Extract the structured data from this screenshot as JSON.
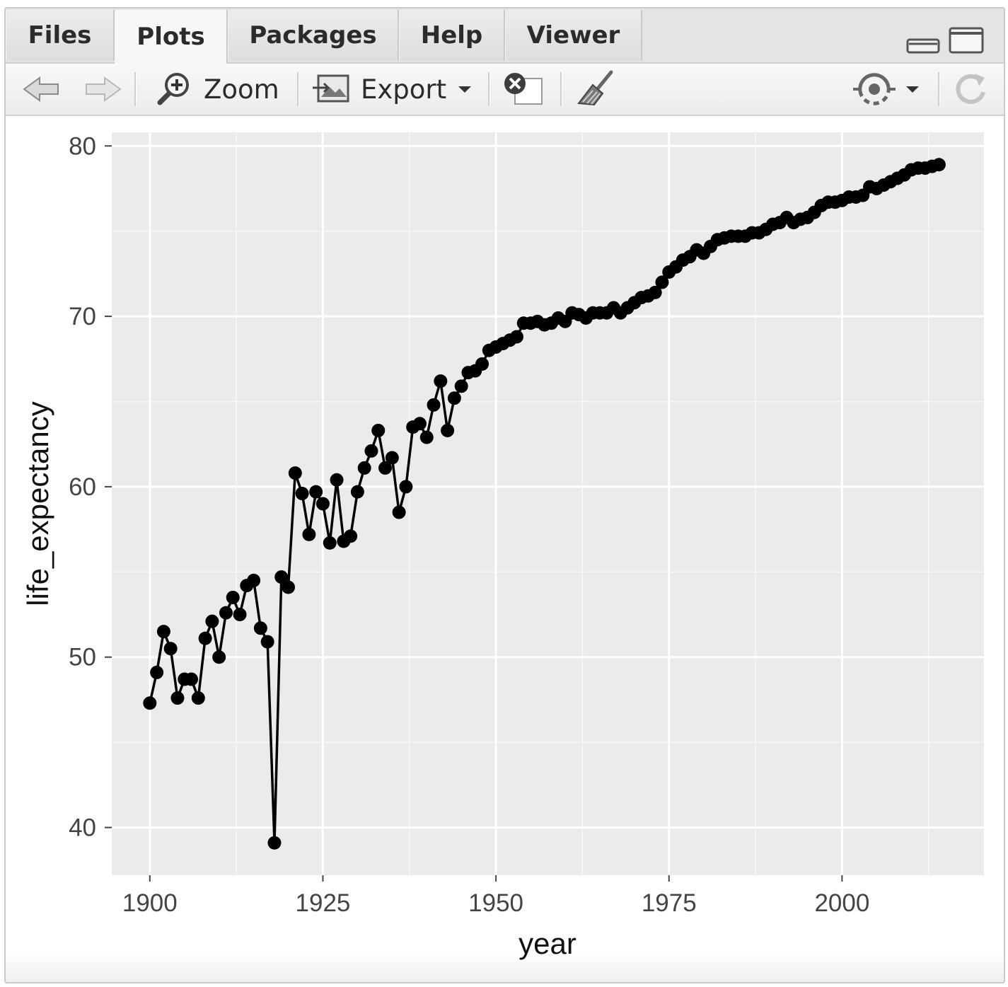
{
  "tabs": [
    {
      "label": "Files",
      "active": false
    },
    {
      "label": "Plots",
      "active": true
    },
    {
      "label": "Packages",
      "active": false
    },
    {
      "label": "Help",
      "active": false
    },
    {
      "label": "Viewer",
      "active": false
    }
  ],
  "toolbar": {
    "zoom_label": "Zoom",
    "export_label": "Export",
    "icons": [
      "back-arrow-icon",
      "forward-arrow-icon",
      "zoom-icon",
      "export-icon",
      "remove-plot-icon",
      "broom-icon",
      "publish-icon",
      "refresh-icon"
    ]
  },
  "chart_data": {
    "type": "line",
    "xlabel": "year",
    "ylabel": "life_expectancy",
    "xlim": [
      1894.5,
      2020.5
    ],
    "ylim": [
      37.2,
      80.8
    ],
    "xticks": [
      1900,
      1925,
      1950,
      1975,
      2000
    ],
    "yticks": [
      40,
      50,
      60,
      70,
      80
    ],
    "grid": true,
    "markers": true,
    "series": [
      {
        "color": "#000000",
        "x": [
          1900,
          1901,
          1902,
          1903,
          1904,
          1905,
          1906,
          1907,
          1908,
          1909,
          1910,
          1911,
          1912,
          1913,
          1914,
          1915,
          1916,
          1917,
          1918,
          1919,
          1920,
          1921,
          1922,
          1923,
          1924,
          1925,
          1926,
          1927,
          1928,
          1929,
          1930,
          1931,
          1932,
          1933,
          1934,
          1935,
          1936,
          1937,
          1938,
          1939,
          1940,
          1941,
          1942,
          1943,
          1944,
          1945,
          1946,
          1947,
          1948,
          1949,
          1950,
          1951,
          1952,
          1953,
          1954,
          1955,
          1956,
          1957,
          1958,
          1959,
          1960,
          1961,
          1962,
          1963,
          1964,
          1965,
          1966,
          1967,
          1968,
          1969,
          1970,
          1971,
          1972,
          1973,
          1974,
          1975,
          1976,
          1977,
          1978,
          1979,
          1980,
          1981,
          1982,
          1983,
          1984,
          1985,
          1986,
          1987,
          1988,
          1989,
          1990,
          1991,
          1992,
          1993,
          1994,
          1995,
          1996,
          1997,
          1998,
          1999,
          2000,
          2001,
          2002,
          2003,
          2004,
          2005,
          2006,
          2007,
          2008,
          2009,
          2010,
          2011,
          2012,
          2013,
          2014
        ],
        "y": [
          47.3,
          49.1,
          51.5,
          50.5,
          47.6,
          48.7,
          48.7,
          47.6,
          51.1,
          52.1,
          50.0,
          52.6,
          53.5,
          52.5,
          54.2,
          54.5,
          51.7,
          50.9,
          39.1,
          54.7,
          54.1,
          60.8,
          59.6,
          57.2,
          59.7,
          59.0,
          56.7,
          60.4,
          56.8,
          57.1,
          59.7,
          61.1,
          62.1,
          63.3,
          61.1,
          61.7,
          58.5,
          60.0,
          63.5,
          63.7,
          62.9,
          64.8,
          66.2,
          63.3,
          65.2,
          65.9,
          66.7,
          66.8,
          67.2,
          68.0,
          68.2,
          68.4,
          68.6,
          68.8,
          69.6,
          69.6,
          69.7,
          69.5,
          69.6,
          69.9,
          69.7,
          70.2,
          70.1,
          69.9,
          70.2,
          70.2,
          70.2,
          70.5,
          70.2,
          70.5,
          70.8,
          71.1,
          71.2,
          71.4,
          72.0,
          72.6,
          72.9,
          73.3,
          73.5,
          73.9,
          73.7,
          74.1,
          74.5,
          74.6,
          74.7,
          74.7,
          74.7,
          74.9,
          74.9,
          75.1,
          75.4,
          75.5,
          75.8,
          75.5,
          75.7,
          75.8,
          76.1,
          76.5,
          76.7,
          76.7,
          76.8,
          77.0,
          77.0,
          77.1,
          77.6,
          77.5,
          77.7,
          77.9,
          78.1,
          78.3,
          78.6,
          78.7,
          78.7,
          78.8,
          78.9
        ]
      }
    ]
  }
}
